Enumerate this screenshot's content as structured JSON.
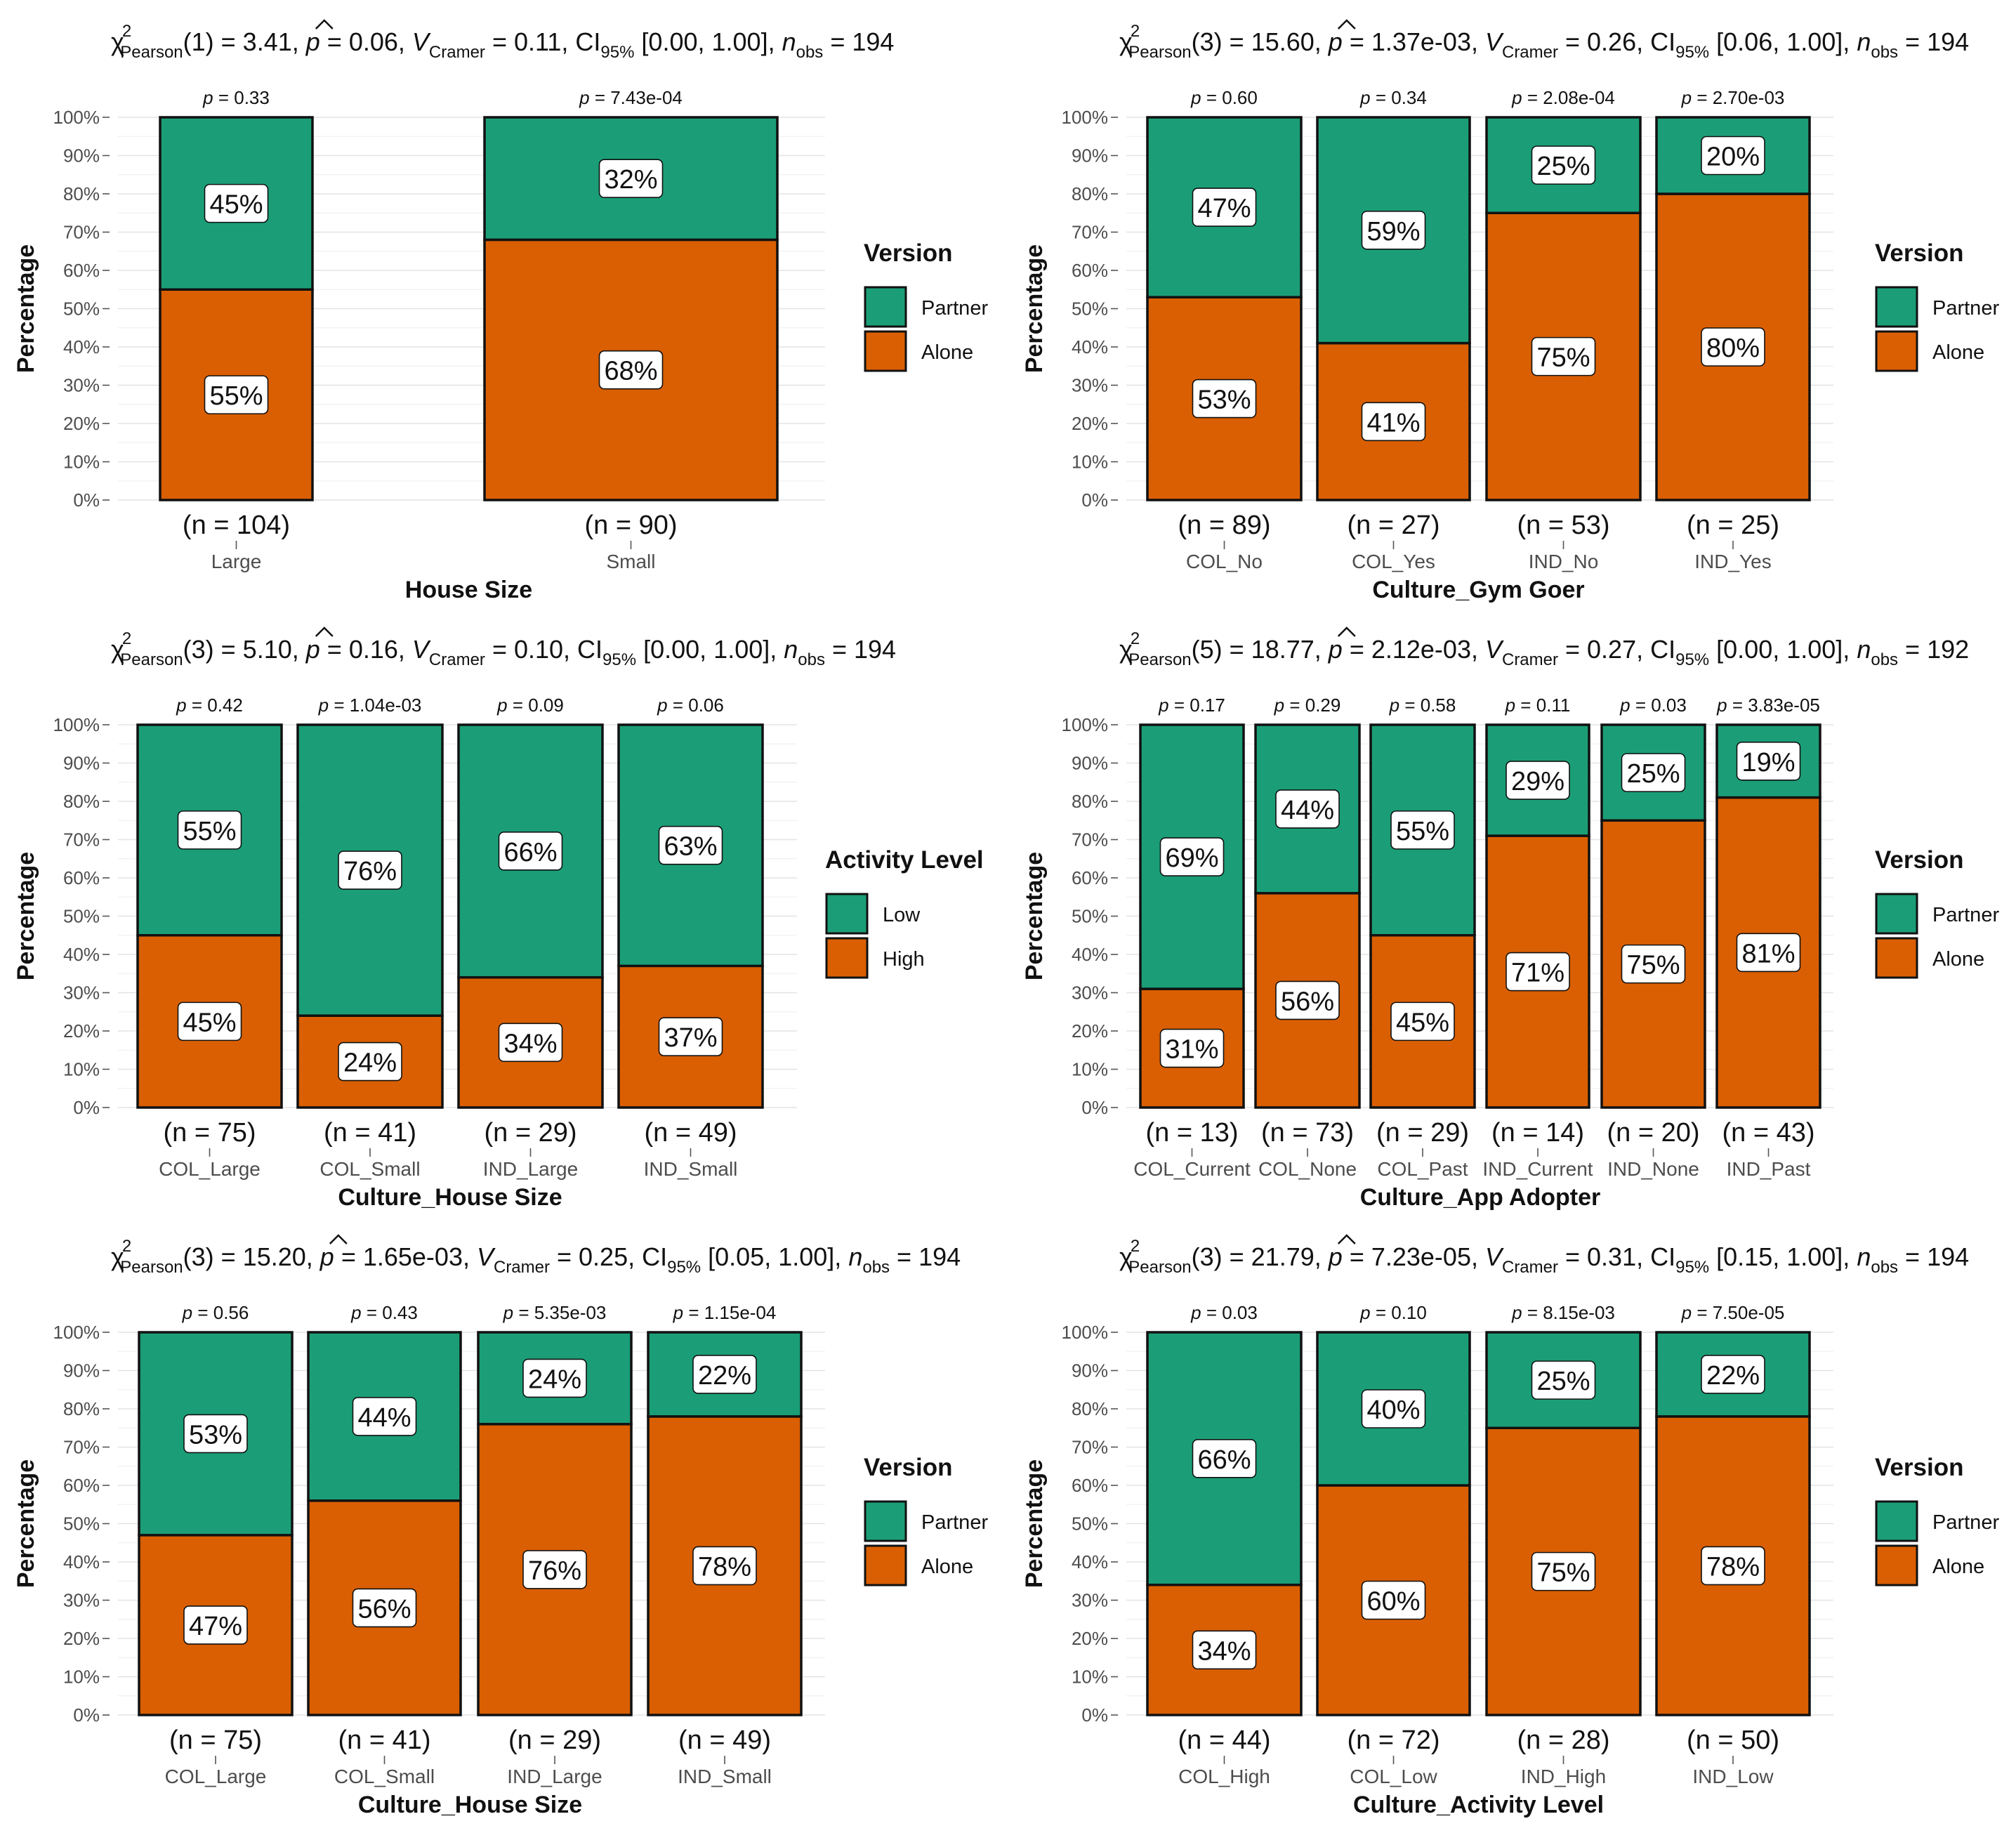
{
  "colors": {
    "partner": "#1b9e77",
    "alone": "#d95f02",
    "low": "#1b9e77",
    "high": "#d95f02"
  },
  "y_ticks": [
    "0%",
    "10%",
    "20%",
    "30%",
    "40%",
    "50%",
    "60%",
    "70%",
    "80%",
    "90%",
    "100%"
  ],
  "chart_data": [
    {
      "type": "bar",
      "subtitle": {
        "stat": "(1) = 3.41, ",
        "p": " = 0.06, ",
        "v": " = 0.11, CI",
        "ci": " [0.00, 1.00], ",
        "n": " = 194"
      },
      "xlabel": "House Size",
      "ylabel": "Percentage",
      "ylim": [
        0,
        100
      ],
      "legend_title": "Version",
      "legend_items": [
        {
          "key": "top",
          "label": "Partner"
        },
        {
          "key": "bottom",
          "label": "Alone"
        }
      ],
      "categories": [
        "Large",
        "Small"
      ],
      "counts": [
        "(n = 104)",
        "(n = 90)"
      ],
      "pvalues": [
        "= 0.33",
        "= 7.43e-04"
      ],
      "series": [
        {
          "name": "Alone",
          "values": [
            55,
            68
          ],
          "labels": [
            "55%",
            "68%"
          ]
        },
        {
          "name": "Partner",
          "values": [
            45,
            32
          ],
          "labels": [
            "45%",
            "32%"
          ]
        }
      ]
    },
    {
      "type": "bar",
      "subtitle": {
        "stat": "(3) = 15.60, ",
        "p": " = 1.37e-03, ",
        "v": " = 0.26, CI",
        "ci": " [0.06, 1.00], ",
        "n": " = 194"
      },
      "xlabel": "Culture_Gym Goer",
      "ylabel": "Percentage",
      "ylim": [
        0,
        100
      ],
      "legend_title": "Version",
      "legend_items": [
        {
          "key": "top",
          "label": "Partner"
        },
        {
          "key": "bottom",
          "label": "Alone"
        }
      ],
      "categories": [
        "COL_No",
        "COL_Yes",
        "IND_No",
        "IND_Yes"
      ],
      "counts": [
        "(n = 89)",
        "(n = 27)",
        "(n = 53)",
        "(n = 25)"
      ],
      "pvalues": [
        "= 0.60",
        "= 0.34",
        "= 2.08e-04",
        "= 2.70e-03"
      ],
      "series": [
        {
          "name": "Alone",
          "values": [
            53,
            41,
            75,
            80
          ],
          "labels": [
            "53%",
            "41%",
            "75%",
            "80%"
          ]
        },
        {
          "name": "Partner",
          "values": [
            47,
            59,
            25,
            20
          ],
          "labels": [
            "47%",
            "59%",
            "25%",
            "20%"
          ]
        }
      ]
    },
    {
      "type": "bar",
      "subtitle": {
        "stat": "(3) = 5.10, ",
        "p": " = 0.16, ",
        "v": " = 0.10, CI",
        "ci": " [0.00, 1.00], ",
        "n": " = 194"
      },
      "xlabel": "Culture_House Size",
      "ylabel": "Percentage",
      "ylim": [
        0,
        100
      ],
      "legend_title": "Activity Level",
      "legend_items": [
        {
          "key": "top",
          "label": "Low"
        },
        {
          "key": "bottom",
          "label": "High"
        }
      ],
      "categories": [
        "COL_Large",
        "COL_Small",
        "IND_Large",
        "IND_Small"
      ],
      "counts": [
        "(n = 75)",
        "(n = 41)",
        "(n = 29)",
        "(n = 49)"
      ],
      "pvalues": [
        "= 0.42",
        "= 1.04e-03",
        "= 0.09",
        "= 0.06"
      ],
      "series": [
        {
          "name": "High",
          "values": [
            45,
            24,
            34,
            37
          ],
          "labels": [
            "45%",
            "24%",
            "34%",
            "37%"
          ]
        },
        {
          "name": "Low",
          "values": [
            55,
            76,
            66,
            63
          ],
          "labels": [
            "55%",
            "76%",
            "66%",
            "63%"
          ]
        }
      ]
    },
    {
      "type": "bar",
      "subtitle": {
        "stat": "(5) = 18.77, ",
        "p": " = 2.12e-03, ",
        "v": " = 0.27, CI",
        "ci": " [0.00, 1.00], ",
        "n": " = 192"
      },
      "xlabel": "Culture_App Adopter",
      "ylabel": "Percentage",
      "ylim": [
        0,
        100
      ],
      "legend_title": "Version",
      "legend_items": [
        {
          "key": "top",
          "label": "Partner"
        },
        {
          "key": "bottom",
          "label": "Alone"
        }
      ],
      "categories": [
        "COL_Current",
        "COL_None",
        "COL_Past",
        "IND_Current",
        "IND_None",
        "IND_Past"
      ],
      "counts": [
        "(n = 13)",
        "(n = 73)",
        "(n = 29)",
        "(n = 14)",
        "(n = 20)",
        "(n = 43)"
      ],
      "pvalues": [
        "= 0.17",
        "= 0.29",
        "= 0.58",
        "= 0.11",
        "= 0.03",
        "= 3.83e-05"
      ],
      "series": [
        {
          "name": "Alone",
          "values": [
            31,
            56,
            45,
            71,
            75,
            81
          ],
          "labels": [
            "31%",
            "56%",
            "45%",
            "71%",
            "75%",
            "81%"
          ]
        },
        {
          "name": "Partner",
          "values": [
            69,
            44,
            55,
            29,
            25,
            19
          ],
          "labels": [
            "69%",
            "44%",
            "55%",
            "29%",
            "25%",
            "19%"
          ]
        }
      ]
    },
    {
      "type": "bar",
      "subtitle": {
        "stat": "(3) = 15.20, ",
        "p": " = 1.65e-03, ",
        "v": " = 0.25, CI",
        "ci": " [0.05, 1.00], ",
        "n": " = 194"
      },
      "xlabel": "Culture_House Size",
      "ylabel": "Percentage",
      "ylim": [
        0,
        100
      ],
      "legend_title": "Version",
      "legend_items": [
        {
          "key": "top",
          "label": "Partner"
        },
        {
          "key": "bottom",
          "label": "Alone"
        }
      ],
      "categories": [
        "COL_Large",
        "COL_Small",
        "IND_Large",
        "IND_Small"
      ],
      "counts": [
        "(n = 75)",
        "(n = 41)",
        "(n = 29)",
        "(n = 49)"
      ],
      "pvalues": [
        "= 0.56",
        "= 0.43",
        "= 5.35e-03",
        "= 1.15e-04"
      ],
      "series": [
        {
          "name": "Alone",
          "values": [
            47,
            56,
            76,
            78
          ],
          "labels": [
            "47%",
            "56%",
            "76%",
            "78%"
          ]
        },
        {
          "name": "Partner",
          "values": [
            53,
            44,
            24,
            22
          ],
          "labels": [
            "53%",
            "44%",
            "24%",
            "22%"
          ]
        }
      ]
    },
    {
      "type": "bar",
      "subtitle": {
        "stat": "(3) = 21.79, ",
        "p": " = 7.23e-05, ",
        "v": " = 0.31, CI",
        "ci": " [0.15, 1.00], ",
        "n": " = 194"
      },
      "xlabel": "Culture_Activity Level",
      "ylabel": "Percentage",
      "ylim": [
        0,
        100
      ],
      "legend_title": "Version",
      "legend_items": [
        {
          "key": "top",
          "label": "Partner"
        },
        {
          "key": "bottom",
          "label": "Alone"
        }
      ],
      "categories": [
        "COL_High",
        "COL_Low",
        "IND_High",
        "IND_Low"
      ],
      "counts": [
        "(n = 44)",
        "(n = 72)",
        "(n = 28)",
        "(n = 50)"
      ],
      "pvalues": [
        "= 0.03",
        "= 0.10",
        "= 8.15e-03",
        "= 7.50e-05"
      ],
      "series": [
        {
          "name": "Alone",
          "values": [
            34,
            60,
            75,
            78
          ],
          "labels": [
            "34%",
            "60%",
            "75%",
            "78%"
          ]
        },
        {
          "name": "Partner",
          "values": [
            66,
            40,
            25,
            22
          ],
          "labels": [
            "66%",
            "40%",
            "25%",
            "22%"
          ]
        }
      ]
    }
  ]
}
